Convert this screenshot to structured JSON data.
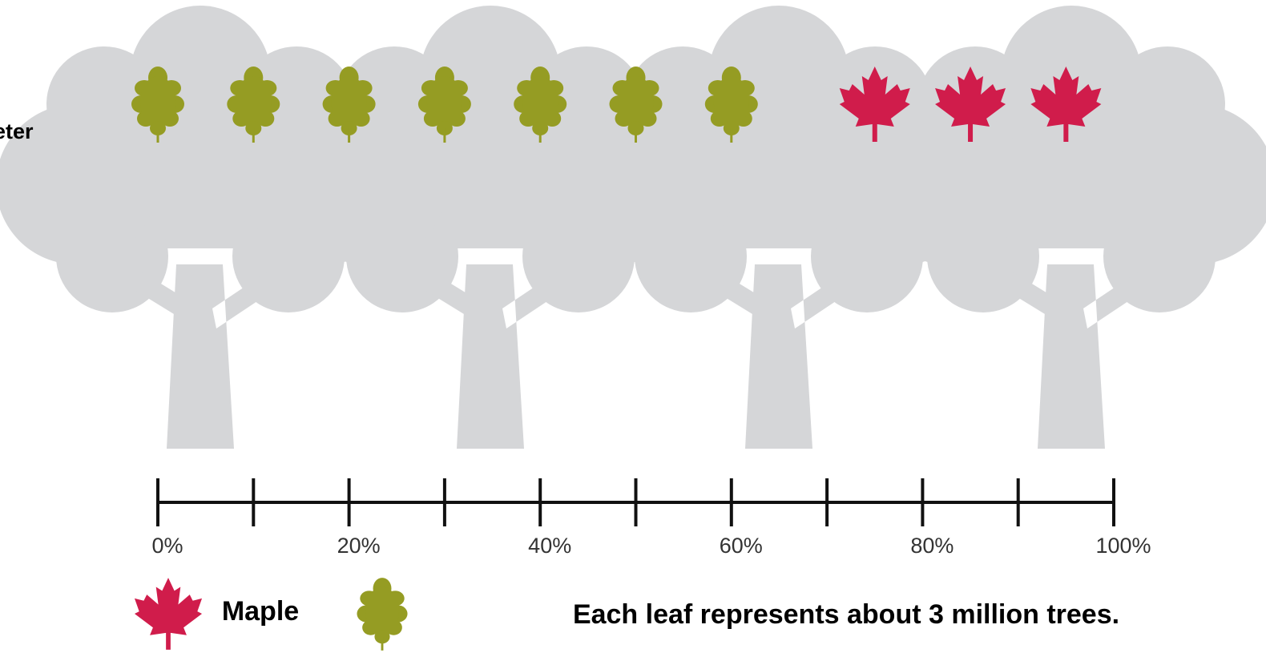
{
  "chart_data": {
    "type": "pictograph",
    "side_label": "eter",
    "note": "Each leaf represents about 3 million trees.",
    "series": [
      {
        "name": null,
        "icon": "oak",
        "color": "#959c23",
        "values": [
          70
        ]
      },
      {
        "name": "Maple",
        "icon": "maple",
        "color": "#d01c4b",
        "values": [
          30
        ]
      }
    ],
    "xlim": [
      0,
      100
    ],
    "xticks": [
      {
        "value": 0,
        "label": "0%"
      },
      {
        "value": 20,
        "label": "20%"
      },
      {
        "value": 40,
        "label": "40%"
      },
      {
        "value": 60,
        "label": "60%"
      },
      {
        "value": 80,
        "label": "80%"
      },
      {
        "value": 100,
        "label": "100%"
      }
    ],
    "minor_xticks": [
      10,
      30,
      50,
      70,
      90
    ]
  }
}
